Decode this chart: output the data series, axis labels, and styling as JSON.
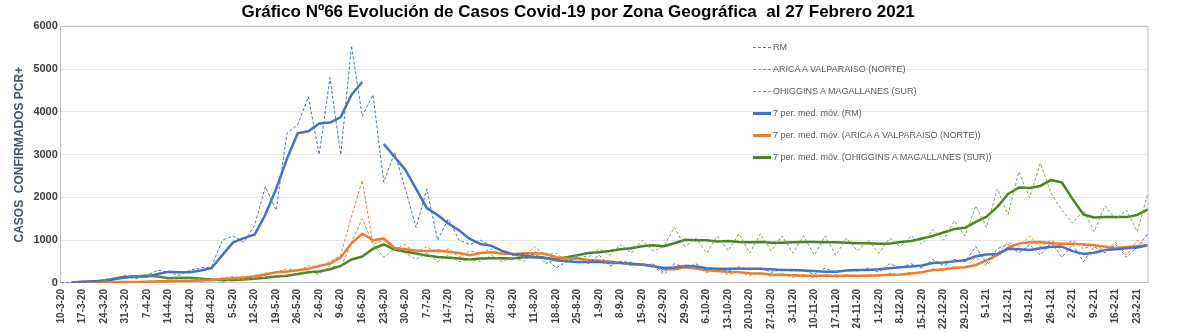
{
  "chart_data": {
    "type": "line",
    "title": "Gráfico Nº66 Evolución de Casos Covid-19 por Zona Geográfica  al 27 Febrero 2021",
    "ylabel": "CASOS  CONFIRMADOS PCR+",
    "categories": [
      "10-3-20",
      null,
      "17-3-20",
      null,
      "24-3-20",
      null,
      "31-3-20",
      null,
      "7-4-20",
      null,
      "14-4-20",
      null,
      "21-4-20",
      null,
      "28-4-20",
      null,
      "5-5-20",
      null,
      "12-5-20",
      null,
      "19-5-20",
      null,
      "26-5-20",
      null,
      "2-6-20",
      null,
      "9-6-20",
      null,
      "16-6-20",
      null,
      "23-6-20",
      null,
      "30-6-20",
      null,
      "7-7-20",
      null,
      "14-7-20",
      null,
      "21-7-20",
      null,
      "28-7-20",
      null,
      "4-8-20",
      null,
      "11-8-20",
      null,
      "18-8-20",
      null,
      "25-8-20",
      null,
      "1-9-20",
      null,
      "8-9-20",
      null,
      "15-9-20",
      null,
      "22-9-20",
      null,
      "29-9-20",
      null,
      "6-10-20",
      null,
      "13-10-20",
      null,
      "20-10-20",
      null,
      "27-10-20",
      null,
      "3-11-20",
      null,
      "10-11-20",
      null,
      "17-11-20",
      null,
      "24-11-20",
      null,
      "1-12-20",
      null,
      "8-12-20",
      null,
      "15-12-20",
      null,
      "22-12-20",
      null,
      "29-12-20",
      null,
      "5-1-21",
      null,
      "12-1-21",
      null,
      "19-1-21",
      null,
      "26-1-21",
      null,
      "2-2-21",
      null,
      "9-2-21",
      null,
      "16-2-21",
      null,
      "23-2-21",
      null
    ],
    "series": [
      {
        "name": "RM",
        "color": "#4472c4",
        "line_style": "dashed",
        "values": [
          0,
          10,
          40,
          30,
          80,
          120,
          150,
          100,
          180,
          300,
          250,
          180,
          300,
          350,
          380,
          1000,
          1100,
          950,
          1350,
          2250,
          1700,
          3500,
          3700,
          4350,
          3000,
          4800,
          3000,
          5550,
          3900,
          4400,
          2350,
          3050,
          2200,
          1300,
          2200,
          1000,
          1500,
          1000,
          900,
          1000,
          850,
          750,
          650,
          700,
          650,
          600,
          350,
          500,
          600,
          450,
          650,
          400,
          500,
          480,
          400,
          450,
          250,
          450,
          350,
          450,
          300,
          350,
          270,
          380,
          300,
          350,
          250,
          320,
          280,
          300,
          200,
          350,
          250,
          300,
          280,
          350,
          250,
          450,
          350,
          450,
          350,
          550,
          400,
          550,
          500,
          850,
          450,
          800,
          900,
          700,
          900,
          650,
          950,
          600,
          900,
          500,
          850,
          700,
          900,
          600,
          850,
          1150
        ]
      },
      {
        "name": "ARICA A VALPARAISO (NORTE)",
        "color": "#ed7d31",
        "line_style": "dashed",
        "values": [
          0,
          0,
          20,
          10,
          30,
          20,
          30,
          20,
          40,
          30,
          50,
          40,
          60,
          50,
          80,
          120,
          150,
          100,
          180,
          230,
          250,
          330,
          280,
          400,
          380,
          500,
          650,
          1550,
          2400,
          900,
          1000,
          780,
          900,
          700,
          850,
          700,
          800,
          600,
          750,
          700,
          800,
          650,
          700,
          600,
          850,
          650,
          700,
          500,
          600,
          500,
          550,
          450,
          500,
          400,
          450,
          400,
          200,
          400,
          380,
          350,
          250,
          300,
          200,
          260,
          180,
          240,
          150,
          220,
          130,
          200,
          120,
          200,
          130,
          200,
          140,
          200,
          150,
          230,
          180,
          250,
          230,
          330,
          300,
          380,
          350,
          600,
          400,
          700,
          950,
          850,
          1100,
          850,
          1000,
          850,
          1000,
          800,
          900,
          750,
          950,
          650,
          1000,
          850
        ]
      },
      {
        "name": "OHIGGINS A MAGALLANES (SUR)",
        "color": "#70ad47",
        "line_style": "dashed",
        "values": [
          null,
          null,
          null,
          null,
          60,
          120,
          180,
          150,
          200,
          150,
          100,
          130,
          110,
          100,
          80,
          30,
          90,
          70,
          110,
          130,
          170,
          180,
          220,
          280,
          200,
          400,
          350,
          950,
          1500,
          900,
          600,
          800,
          700,
          550,
          700,
          500,
          650,
          500,
          550,
          500,
          650,
          500,
          600,
          500,
          700,
          450,
          550,
          550,
          650,
          600,
          800,
          650,
          900,
          700,
          1000,
          750,
          850,
          1300,
          850,
          1050,
          700,
          1100,
          750,
          1150,
          700,
          1150,
          750,
          1100,
          700,
          1100,
          650,
          1100,
          650,
          1050,
          750,
          1000,
          700,
          1050,
          850,
          1100,
          900,
          1250,
          1000,
          1450,
          1100,
          1800,
          1300,
          2200,
          1600,
          2600,
          2000,
          2800,
          2100,
          1700,
          1400,
          1700,
          1200,
          1800,
          1500,
          1700,
          1200,
          2100
        ]
      },
      {
        "name": "7 per. med. móv. (RM)",
        "color": "#4472c4",
        "line_style": "solid",
        "values": [
          null,
          10,
          30,
          40,
          50,
          90,
          130,
          150,
          150,
          210,
          260,
          250,
          250,
          290,
          350,
          650,
          950,
          1050,
          1130,
          1600,
          2200,
          2900,
          3500,
          3550,
          3730,
          3750,
          3880,
          4400,
          4700,
          null,
          3250,
          2950,
          2650,
          2200,
          1750,
          1590,
          1390,
          1230,
          1030,
          910,
          870,
          750,
          670,
          640,
          610,
          590,
          530,
          510,
          490,
          490,
          490,
          470,
          465,
          450,
          430,
          390,
          350,
          360,
          400,
          385,
          345,
          330,
          330,
          335,
          335,
          330,
          320,
          305,
          305,
          290,
          280,
          265,
          265,
          290,
          305,
          305,
          320,
          345,
          370,
          385,
          410,
          465,
          480,
          505,
          530,
          625,
          665,
          680,
          800,
          790,
          770,
          810,
          845,
          850,
          745,
          680,
          705,
          770,
          790,
          810,
          830,
          880
        ]
      },
      {
        "name": "7 per. med. móv. (ARICA A VALPARAISO (NORTE))",
        "color": "#ed7d31",
        "line_style": "solid",
        "values": [
          null,
          10,
          20,
          20,
          20,
          20,
          20,
          20,
          30,
          40,
          40,
          50,
          50,
          60,
          70,
          90,
          110,
          130,
          150,
          200,
          250,
          270,
          300,
          330,
          400,
          450,
          600,
          930,
          1150,
          1000,
          1040,
          820,
          790,
          760,
          750,
          760,
          730,
          700,
          650,
          700,
          720,
          690,
          680,
          690,
          700,
          680,
          600,
          570,
          570,
          540,
          520,
          500,
          470,
          440,
          430,
          400,
          320,
          320,
          370,
          340,
          300,
          280,
          260,
          250,
          230,
          220,
          200,
          190,
          180,
          170,
          170,
          170,
          170,
          170,
          170,
          170,
          180,
          190,
          200,
          220,
          250,
          300,
          320,
          350,
          370,
          420,
          530,
          650,
          820,
          920,
          950,
          960,
          930,
          920,
          920,
          900,
          880,
          850,
          820,
          840,
          860,
          880
        ]
      },
      {
        "name": "7 per. med. móv. (OHIGGINS A MAGALLANES (SUR))",
        "color": "#4e7f2a",
        "line_style": "solid",
        "values": [
          null,
          null,
          null,
          30,
          50,
          100,
          140,
          160,
          170,
          150,
          110,
          120,
          120,
          100,
          80,
          70,
          70,
          80,
          100,
          120,
          150,
          170,
          210,
          250,
          270,
          320,
          400,
          550,
          620,
          800,
          900,
          780,
          730,
          690,
          640,
          610,
          590,
          570,
          550,
          570,
          580,
          580,
          570,
          600,
          610,
          580,
          560,
          600,
          650,
          700,
          720,
          750,
          790,
          810,
          860,
          880,
          860,
          930,
          1010,
          1000,
          1000,
          970,
          980,
          960,
          950,
          960,
          940,
          940,
          950,
          960,
          960,
          950,
          950,
          940,
          930,
          930,
          920,
          920,
          960,
          980,
          1040,
          1100,
          1180,
          1260,
          1290,
          1430,
          1550,
          1780,
          2080,
          2230,
          2220,
          2270,
          2410,
          2350,
          1960,
          1600,
          1530,
          1540,
          1540,
          1540,
          1590,
          1720
        ]
      }
    ],
    "ylim": [
      0,
      6000
    ],
    "yticks": [
      0,
      1000,
      2000,
      3000,
      4000,
      5000,
      6000
    ],
    "grid": "y",
    "legend": "top right",
    "marker": "none"
  }
}
